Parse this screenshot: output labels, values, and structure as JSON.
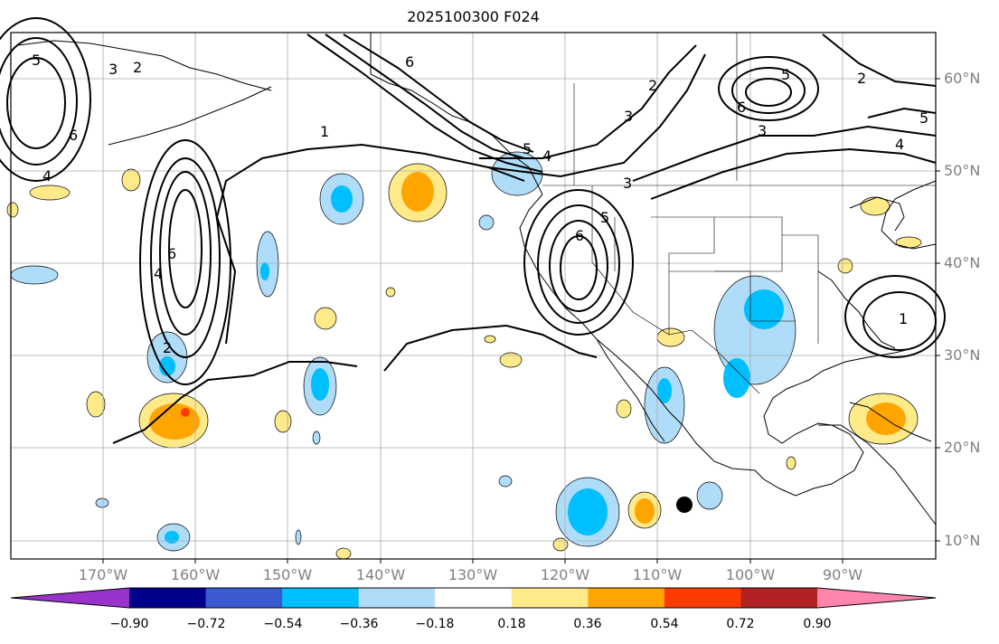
{
  "title": "2025100300 F024",
  "lat_labels": [
    "60°N",
    "50°N",
    "40°N",
    "30°N",
    "20°N",
    "10°N"
  ],
  "lon_labels": [
    "170°W",
    "160°W",
    "150°W",
    "140°W",
    "130°W",
    "120°W",
    "110°W",
    "100°W",
    "90°W"
  ],
  "colorbar": {
    "ticks": [
      "−0.90",
      "−0.72",
      "−0.54",
      "−0.36",
      "−0.18",
      "0.18",
      "0.36",
      "0.54",
      "0.72",
      "0.90"
    ],
    "colors": [
      "#9a33cc",
      "#00008b",
      "#3a5bd0",
      "#00bfff",
      "#afdcf8",
      "#ffffff",
      "#ffea8a",
      "#ffa500",
      "#ff3c00",
      "#b22222",
      "#ff85ad"
    ]
  },
  "contour_labels": [
    "5",
    "3",
    "2",
    "6",
    "4",
    "1",
    "6",
    "5",
    "4",
    "3",
    "2",
    "2",
    "4",
    "6",
    "5",
    "3",
    "5",
    "6",
    "4",
    "5",
    "6",
    "3",
    "2",
    "1"
  ],
  "marker": "black-dot"
}
